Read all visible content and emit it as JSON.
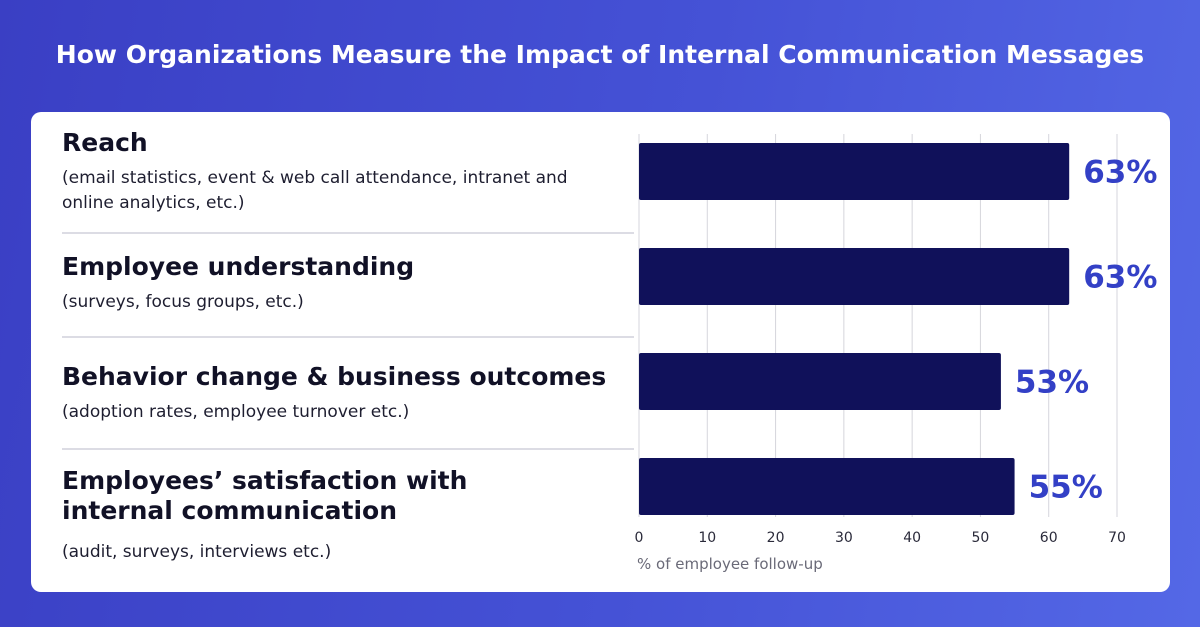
{
  "title": "How Organizations Measure the Impact of Internal Communication Messages",
  "categories": [
    {
      "heading": "Reach",
      "detail": "(email statistics, event & web call attendance, intranet and online analytics, etc.)"
    },
    {
      "heading": "Employee understanding",
      "detail": "(surveys, focus groups, etc.)"
    },
    {
      "heading": "Behavior change & business outcomes",
      "detail": "(adoption rates, employee turnover etc.)"
    },
    {
      "heading": "Employees’ satisfaction with internal communication",
      "detail": "(audit, surveys, interviews etc.)"
    }
  ],
  "chart_data": {
    "type": "bar",
    "orientation": "horizontal",
    "categories": [
      "Reach",
      "Employee understanding",
      "Behavior change & business outcomes",
      "Employees’ satisfaction with internal communication"
    ],
    "values": [
      63,
      63,
      53,
      55
    ],
    "value_labels": [
      "63%",
      "63%",
      "53%",
      "55%"
    ],
    "xlabel": "% of employee follow-up",
    "xlim": [
      0,
      70
    ],
    "xticks": [
      "0",
      "10",
      "20",
      "30",
      "40",
      "50",
      "60",
      "70"
    ],
    "grid": true,
    "colors": {
      "bar": "#10115a",
      "label": "#3340c6",
      "grid": "#d6d6dc",
      "tick": "#2a2a3a",
      "axis_label": "#6a6a78"
    }
  }
}
